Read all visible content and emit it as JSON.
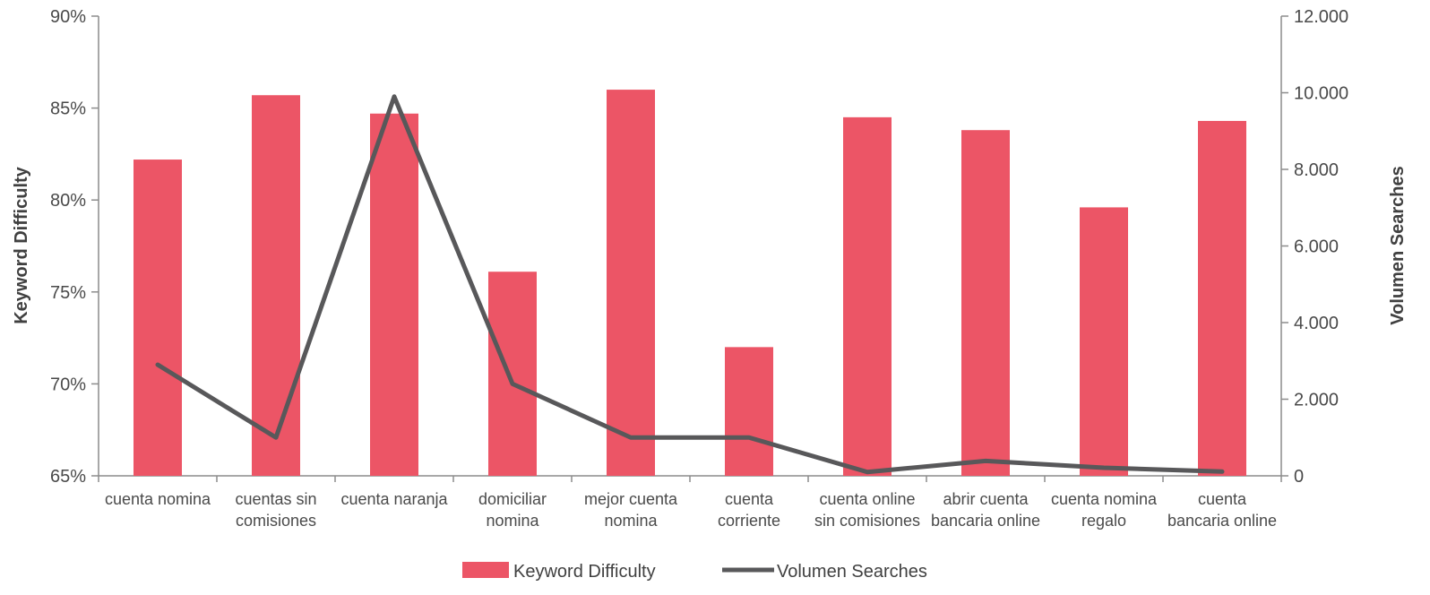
{
  "chart_data": {
    "type": "bar",
    "categories": [
      [
        "cuenta nomina"
      ],
      [
        "cuentas sin",
        "comisiones"
      ],
      [
        "cuenta naranja"
      ],
      [
        "domiciliar",
        "nomina"
      ],
      [
        "mejor cuenta",
        "nomina"
      ],
      [
        "cuenta",
        "corriente"
      ],
      [
        "cuenta online",
        "sin comisiones"
      ],
      [
        "abrir cuenta",
        "bancaria online"
      ],
      [
        "cuenta nomina",
        "regalo"
      ],
      [
        "cuenta",
        "bancaria online"
      ]
    ],
    "series": [
      {
        "name": "Keyword Difficulty",
        "type": "bar",
        "axis": "left",
        "color": "#ec5566",
        "values": [
          82.2,
          85.7,
          84.7,
          76.1,
          86.0,
          72.0,
          84.5,
          83.8,
          79.6,
          84.3
        ]
      },
      {
        "name": "Volumen Searches",
        "type": "line",
        "axis": "right",
        "color": "#58585a",
        "values": [
          2900,
          1000,
          9900,
          2400,
          1000,
          1000,
          100,
          390,
          210,
          110
        ]
      }
    ],
    "y_left": {
      "label": "Keyword Difficulty",
      "range": [
        65,
        90
      ],
      "ticks": [
        65,
        70,
        75,
        80,
        85,
        90
      ],
      "tick_labels": [
        "65%",
        "70%",
        "75%",
        "80%",
        "85%",
        "90%"
      ]
    },
    "y_right": {
      "label": "Volumen Searches",
      "range": [
        0,
        12000
      ],
      "ticks": [
        0,
        2000,
        4000,
        6000,
        8000,
        10000,
        12000
      ],
      "tick_labels": [
        "0",
        "2.000",
        "4.000",
        "6.000",
        "8.000",
        "10.000",
        "12.000"
      ]
    },
    "grid": false,
    "legend_position": "bottom"
  }
}
